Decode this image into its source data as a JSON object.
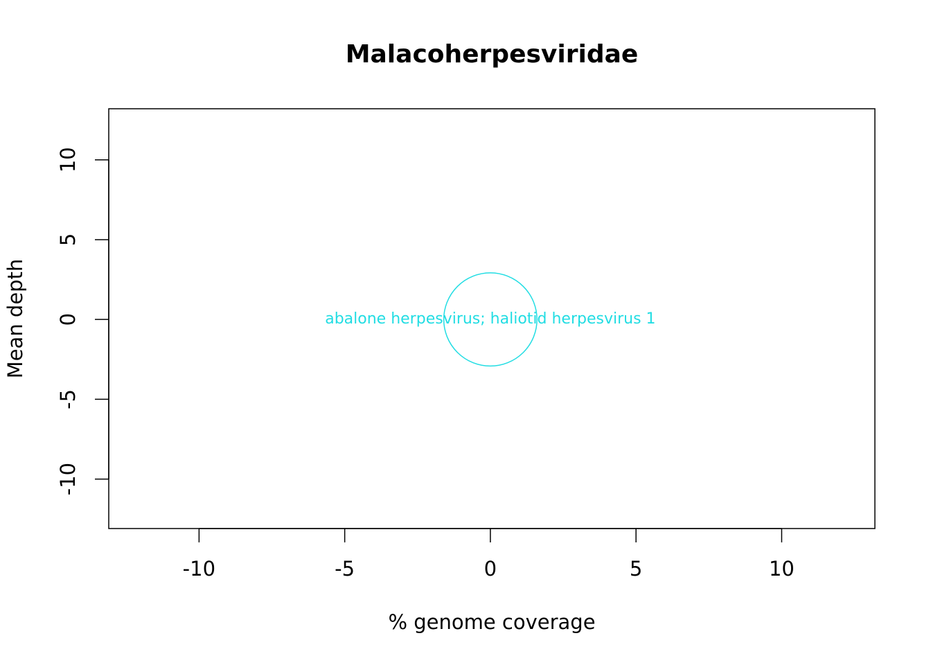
{
  "chart_data": {
    "type": "scatter",
    "title": "Malacoherpesviridae",
    "x_label": "% genome coverage",
    "y_label": "Mean depth",
    "series": [
      {
        "name": null,
        "color": "#22dde3",
        "x": [
          0
        ],
        "values": [
          0
        ],
        "sizes": [
          1.6
        ],
        "labels": [
          "abalone herpesvirus; haliotid herpesvirus 1"
        ]
      }
    ],
    "xlim": [
      -13.1,
      13.2
    ],
    "ylim": [
      -13.1,
      13.2
    ],
    "xticks": [
      -10,
      -5,
      0,
      5,
      10
    ],
    "yticks": [
      -10,
      -5,
      0,
      5,
      10
    ],
    "grid": false
  }
}
